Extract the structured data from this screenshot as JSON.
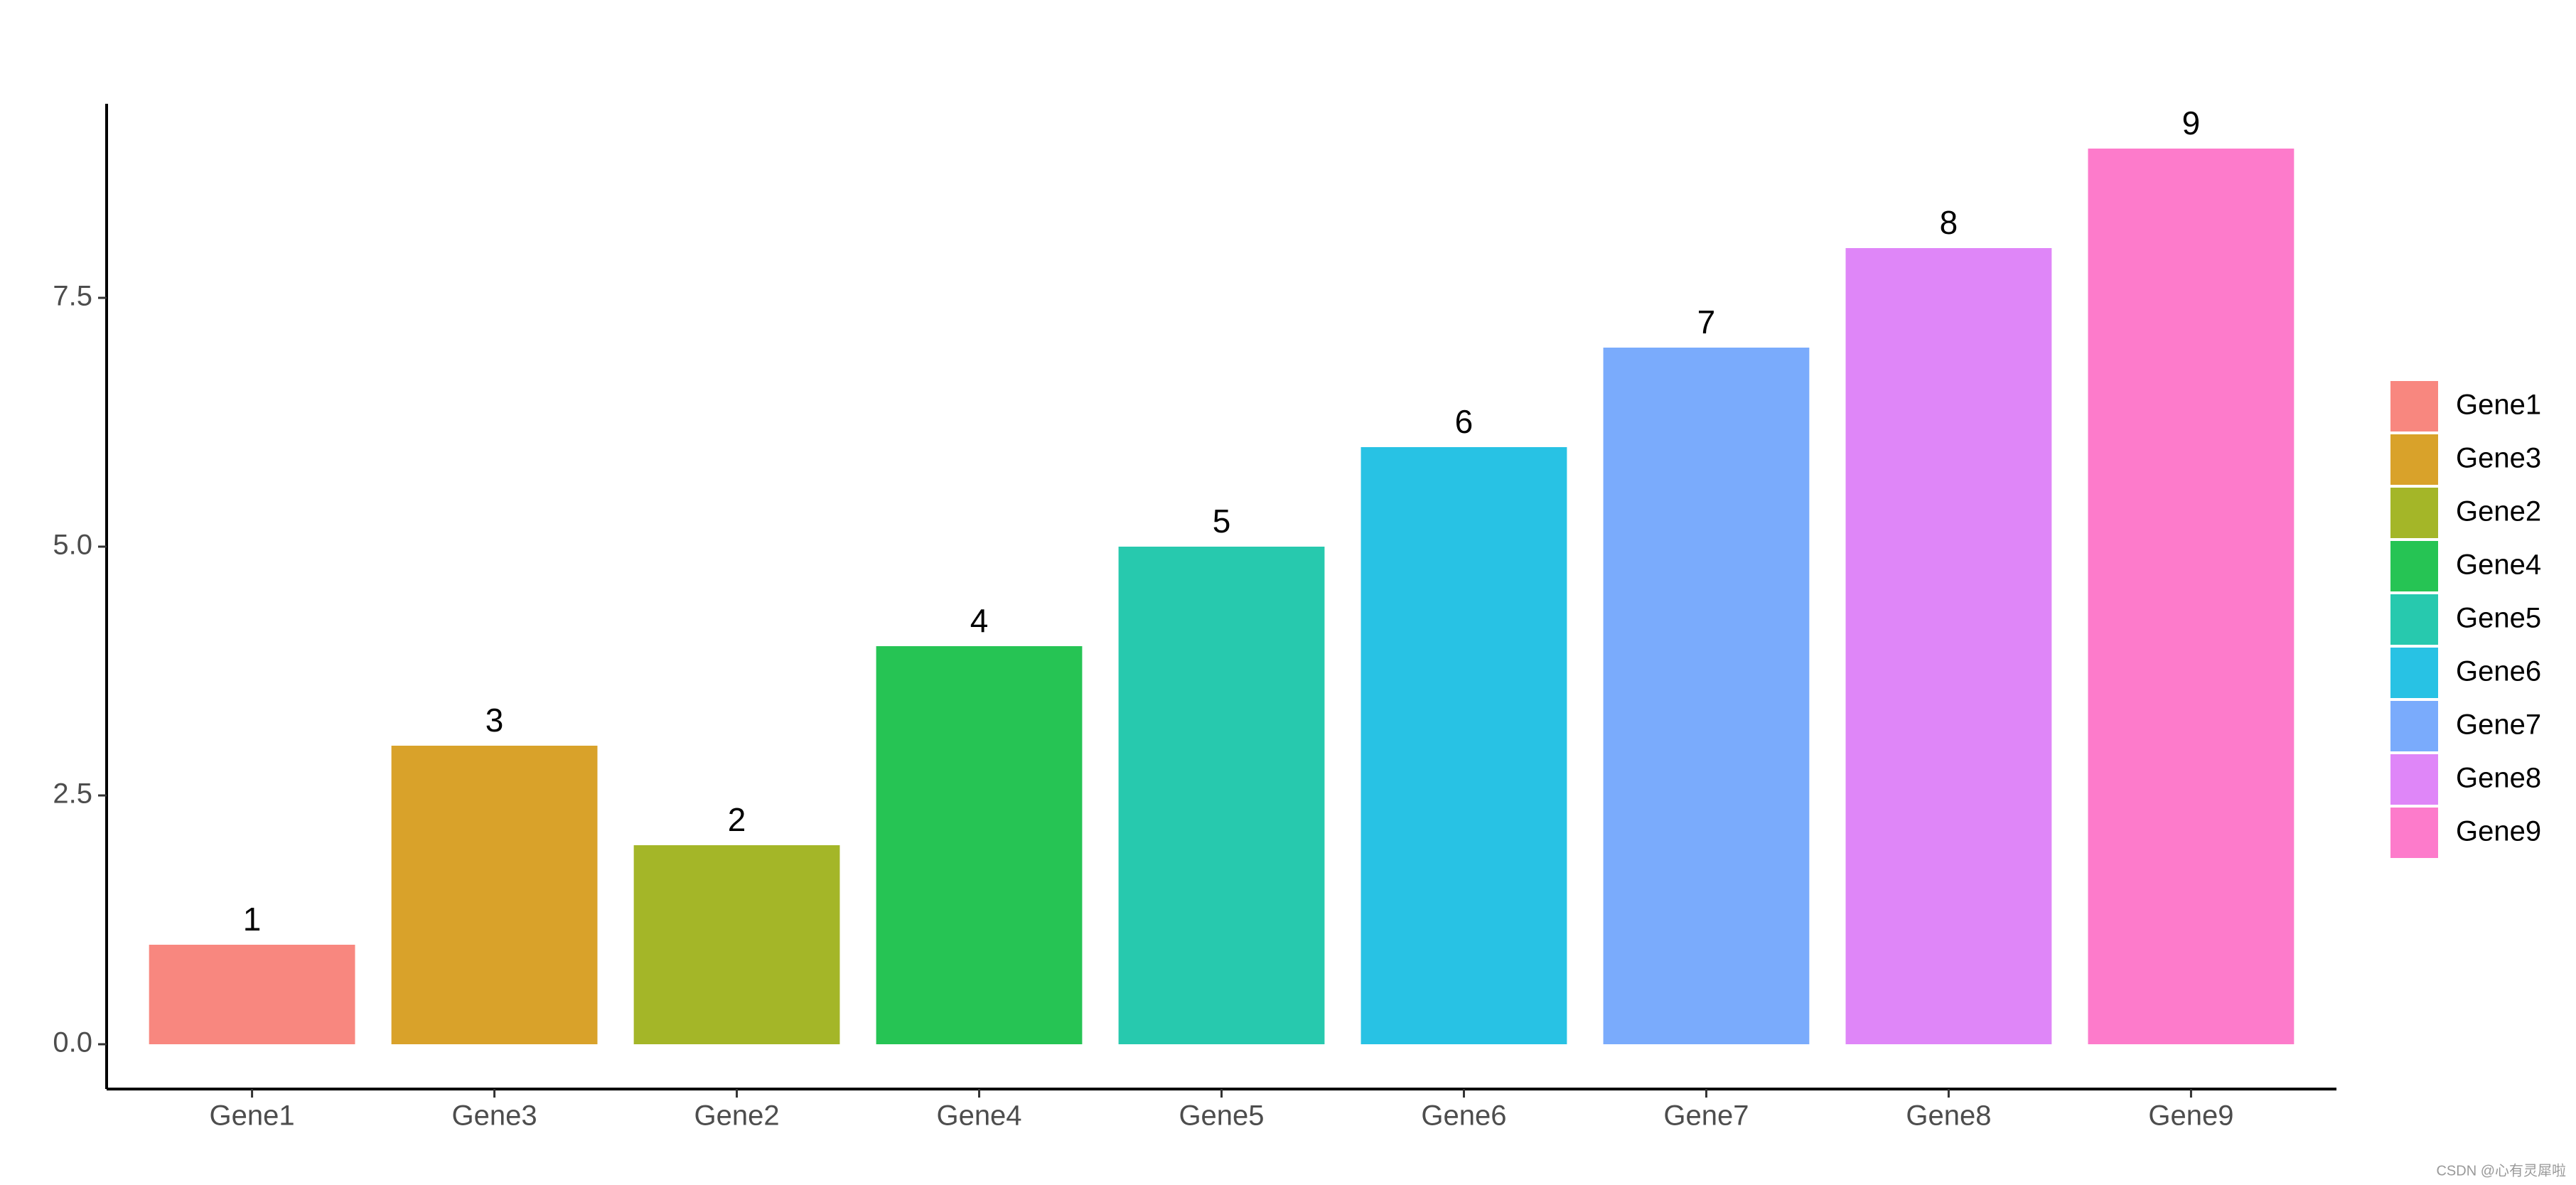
{
  "chart_data": {
    "type": "bar",
    "categories": [
      "Gene1",
      "Gene3",
      "Gene2",
      "Gene4",
      "Gene5",
      "Gene6",
      "Gene7",
      "Gene8",
      "Gene9"
    ],
    "values": [
      1,
      3,
      2,
      4,
      5,
      6,
      7,
      8,
      9
    ],
    "colors": [
      "#f8877f",
      "#d9a22a",
      "#a4b628",
      "#26c454",
      "#27c9ae",
      "#28c2e4",
      "#7aabfc",
      "#df86f8",
      "#fd7bcb"
    ],
    "ylim": [
      -0.45,
      9.45
    ],
    "yticks": [
      {
        "value": 0,
        "label": "0.0"
      },
      {
        "value": 2.5,
        "label": "2.5"
      },
      {
        "value": 5,
        "label": "5.0"
      },
      {
        "value": 7.5,
        "label": "7.5"
      }
    ],
    "legend": "right",
    "watermark": "CSDN @心有灵犀啦"
  }
}
